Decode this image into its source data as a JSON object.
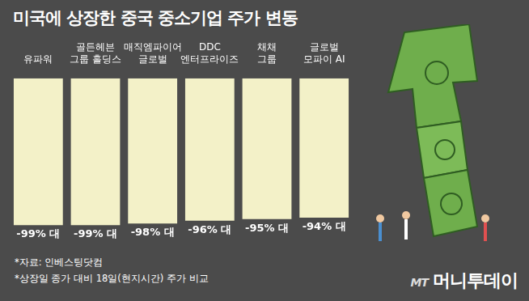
{
  "chart_data": {
    "type": "bar",
    "title": "미국에 상장한 중국 중소기업 주가 변동",
    "categories": [
      "유파워",
      [
        "골든헤븐",
        "그룹 홀딩스"
      ],
      [
        "매직엠파이어",
        "글로벌"
      ],
      [
        "DDC",
        "엔터프라이즈"
      ],
      [
        "채채",
        "그룹"
      ],
      [
        "글로벌",
        "모파이 AI"
      ]
    ],
    "values": [
      -99,
      -99,
      -98,
      -96,
      -95,
      -94
    ],
    "value_labels": [
      "-99% 대",
      "-99% 대",
      "-98% 대",
      "-96% 대",
      "-95% 대",
      "-94% 대"
    ],
    "color": "#f3f1c8",
    "ylim": [
      -100,
      0
    ],
    "grid": false,
    "data_labels": true,
    "tick_labels": "x",
    "notes": [
      "*자료: 인베스팅닷컴",
      "*상장일 종가 대비 18일(현지시간) 주가 비교"
    ],
    "logo_mark": "MT",
    "logo": "머니투데이"
  }
}
